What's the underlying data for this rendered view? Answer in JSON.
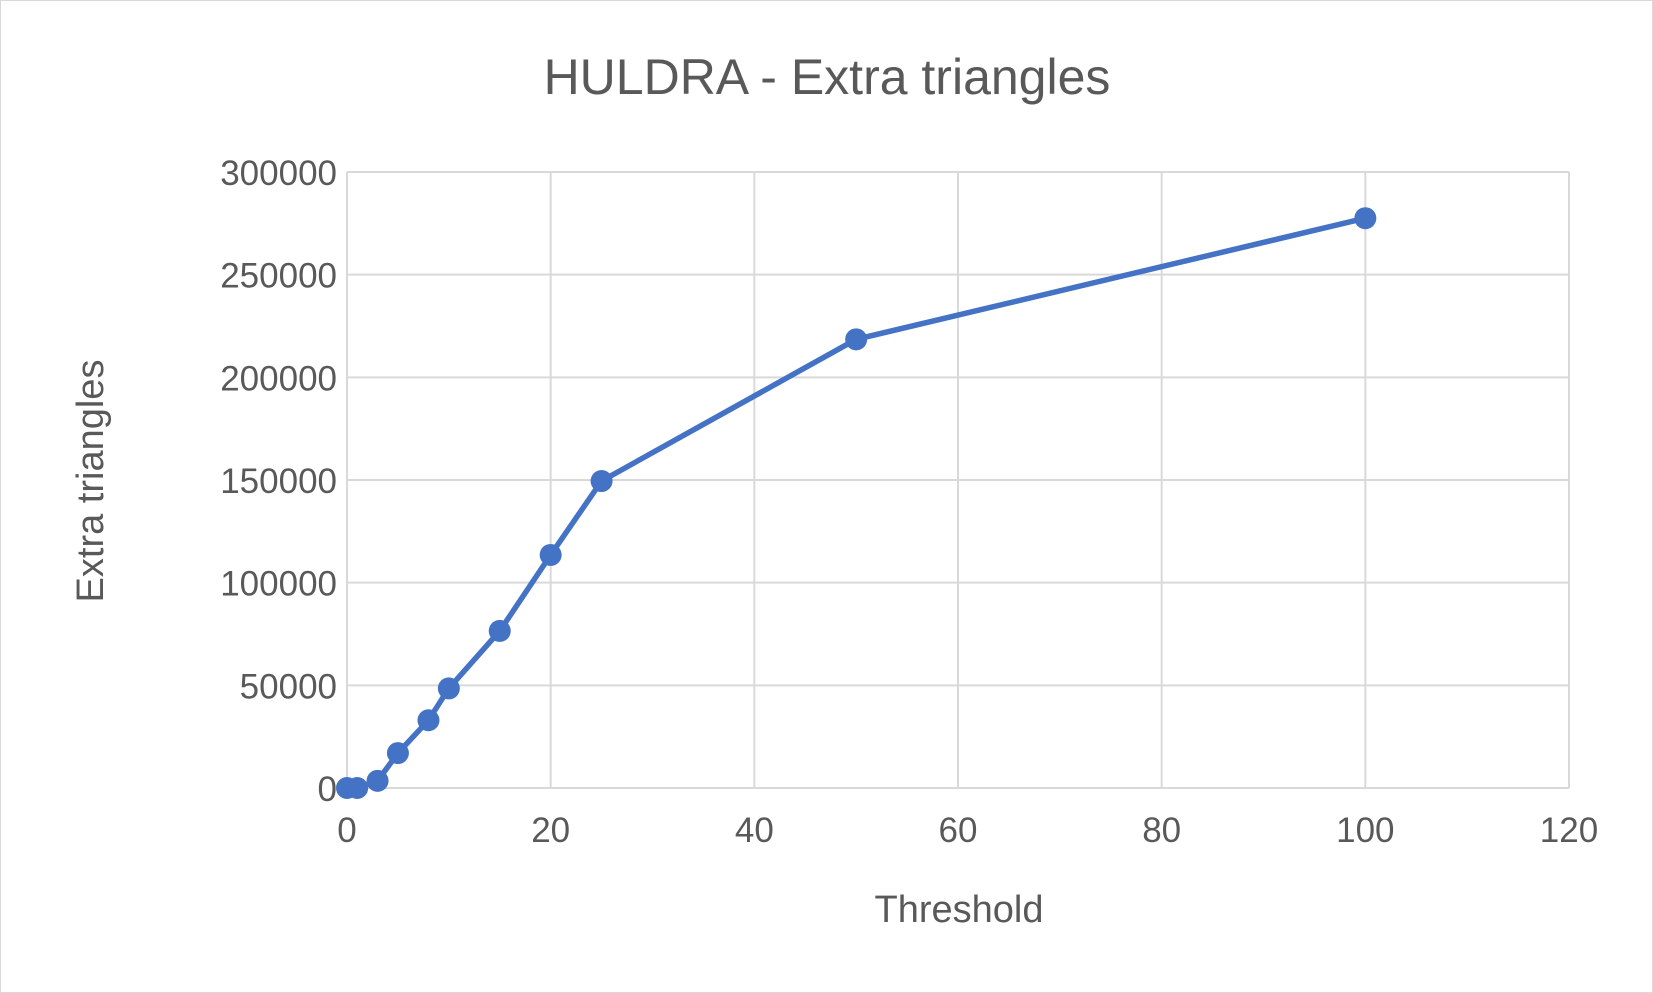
{
  "chart_data": {
    "type": "scatter",
    "title": "HULDRA - Extra triangles",
    "xlabel": "Threshold",
    "ylabel": "Extra triangles",
    "xlim": [
      0,
      120
    ],
    "ylim": [
      0,
      300000
    ],
    "x_ticks": [
      0,
      20,
      40,
      60,
      80,
      100,
      120
    ],
    "y_ticks": [
      0,
      50000,
      100000,
      150000,
      200000,
      250000,
      300000
    ],
    "x_tick_labels": [
      "0",
      "20",
      "40",
      "60",
      "80",
      "100",
      "120"
    ],
    "y_tick_labels": [
      "0",
      "50000",
      "100000",
      "150000",
      "200000",
      "250000",
      "300000"
    ],
    "grid": true,
    "legend": "none",
    "color": "#4472c4",
    "series": [
      {
        "x": [
          0,
          1,
          3,
          5,
          8,
          10,
          15,
          20,
          25,
          50,
          100
        ],
        "y": [
          0,
          0,
          3500,
          17000,
          33000,
          48500,
          76500,
          113500,
          149500,
          218500,
          277500
        ]
      }
    ]
  }
}
